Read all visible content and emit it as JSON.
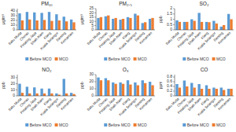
{
  "chart_data": [
    {
      "type": "bar",
      "title": "PM₁₀",
      "ylabel": "μg/m³",
      "categories": [
        "Batu\nMuda",
        "Cheras",
        "Petaling\nJaya",
        "Shah\nAlam",
        "Klang",
        "Kuala\nSelangor",
        "Banting",
        "Kemaman"
      ],
      "series": [
        {
          "name": "Before MCO",
          "color": "#5B9BD5",
          "values": [
            35,
            38,
            37,
            36,
            38,
            33,
            28,
            22
          ]
        },
        {
          "name": "MCO",
          "color": "#ED7D31",
          "values": [
            20,
            22,
            20,
            21,
            19,
            20,
            18,
            16
          ]
        }
      ],
      "ylim": [
        0,
        45
      ],
      "yticks": [
        0,
        10,
        20,
        30,
        40
      ],
      "grid": false,
      "legend": "bottom"
    },
    {
      "type": "bar",
      "title": "PM₂.₅",
      "ylabel": "μg/m³",
      "categories": [
        "Batu\nMuda",
        "Cheras",
        "Petaling\nJaya",
        "Shah\nAlam",
        "Klang",
        "Kuala\nSelangor",
        "Banting",
        "Kemaman"
      ],
      "series": [
        {
          "name": "Before MCO",
          "color": "#5B9BD5",
          "values": [
            14,
            16,
            13,
            12,
            15,
            19,
            8,
            13
          ]
        },
        {
          "name": "MCO",
          "color": "#ED7D31",
          "values": [
            15,
            17,
            14,
            13,
            14,
            17,
            9,
            14
          ]
        }
      ],
      "ylim": [
        0,
        25
      ],
      "yticks": [
        0,
        5,
        10,
        15,
        20,
        25
      ],
      "grid": false,
      "legend": "bottom"
    },
    {
      "type": "bar",
      "title": "SO₂",
      "ylabel": "ppb",
      "categories": [
        "Batu\nMuda",
        "Cheras",
        "Petaling\nJaya",
        "Shah\nAlam",
        "Klang",
        "Kuala\nSelangor",
        "Banting",
        "Kemaman"
      ],
      "series": [
        {
          "name": "Before MCO",
          "color": "#5B9BD5",
          "values": [
            0.9,
            0.75,
            1.0,
            1.6,
            0.75,
            0.85,
            0.3,
            1.5
          ]
        },
        {
          "name": "MCO",
          "color": "#ED7D31",
          "values": [
            0.75,
            0.75,
            0.85,
            0.75,
            0.72,
            0.6,
            0.45,
            1.0
          ]
        }
      ],
      "ylim": [
        0,
        2.0
      ],
      "yticks": [
        0,
        0.5,
        1,
        1.5,
        2
      ],
      "grid": false,
      "legend": "bottom"
    },
    {
      "type": "bar",
      "title": "NO₂",
      "ylabel": "ppb",
      "categories": [
        "Batu\nMuda",
        "Cheras",
        "Petaling\nJaya",
        "Shah\nAlam",
        "Klang",
        "Kuala\nSelangor",
        "Banting",
        "Kemaman"
      ],
      "series": [
        {
          "name": "Before MCO",
          "color": "#5B9BD5",
          "values": [
            20,
            15,
            14,
            12,
            12,
            4,
            28,
            5
          ]
        },
        {
          "name": "MCO",
          "color": "#ED7D31",
          "values": [
            5,
            4,
            4,
            4,
            4,
            2,
            4,
            3
          ]
        }
      ],
      "ylim": [
        0,
        35
      ],
      "yticks": [
        0,
        10,
        20,
        30
      ],
      "grid": false,
      "legend": "bottom"
    },
    {
      "type": "bar",
      "title": "O₃",
      "ylabel": "ppb",
      "categories": [
        "Batu\nMuda",
        "Cheras",
        "Petaling\nJaya",
        "Shah\nAlam",
        "Klang",
        "Kuala\nSelangor",
        "Banting",
        "Kemaman"
      ],
      "series": [
        {
          "name": "Before MCO",
          "color": "#5B9BD5",
          "values": [
            26,
            25,
            19,
            19,
            22,
            19,
            22,
            20
          ]
        },
        {
          "name": "MCO",
          "color": "#ED7D31",
          "values": [
            22,
            22,
            17,
            17,
            16,
            15,
            18,
            15
          ]
        }
      ],
      "ylim": [
        0,
        30
      ],
      "yticks": [
        0,
        10,
        20,
        30
      ],
      "grid": false,
      "legend": "bottom"
    },
    {
      "type": "bar",
      "title": "CO",
      "ylabel": "ppm",
      "categories": [
        "Batu\nMuda",
        "Cheras",
        "Petaling\nJaya",
        "Shah\nAlam",
        "Klang",
        "Kuala\nSelangor",
        "Banting",
        "Kemaman"
      ],
      "series": [
        {
          "name": "Before MCO",
          "color": "#5B9BD5",
          "values": [
            0.5,
            0.65,
            0.55,
            0.5,
            0.45,
            0.35,
            0.35,
            0.3
          ]
        },
        {
          "name": "MCO",
          "color": "#ED7D31",
          "values": [
            0.35,
            0.4,
            0.35,
            0.3,
            0.3,
            0.3,
            0.25,
            0.3
          ]
        }
      ],
      "ylim": [
        0,
        0.9
      ],
      "yticks": [
        0,
        0.2,
        0.4,
        0.6,
        0.8
      ],
      "grid": false,
      "legend": "bottom"
    }
  ]
}
